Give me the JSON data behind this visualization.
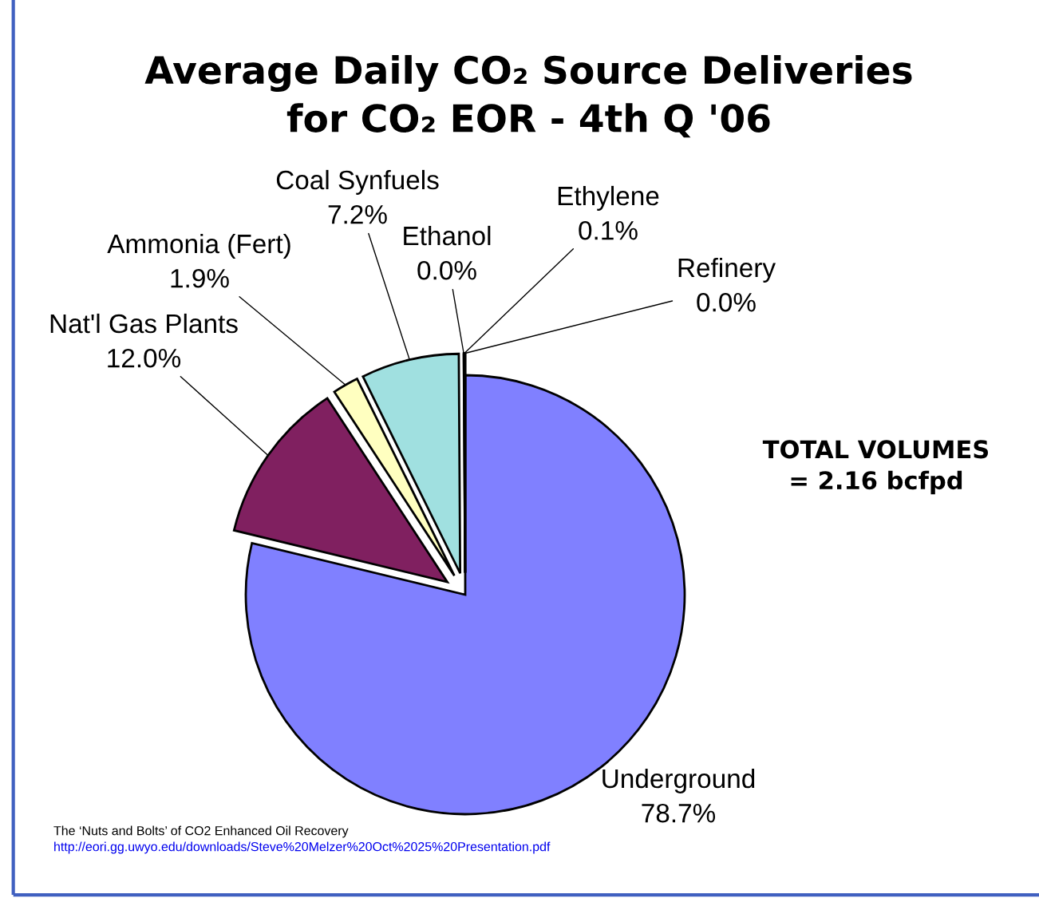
{
  "chart_data": {
    "type": "pie",
    "title": "Average Daily CO₂ Source Deliveries\nfor CO₂ EOR - 4th Q '06",
    "categories": [
      "Underground",
      "Nat'l Gas Plants",
      "Ammonia (Fert)",
      "Coal Synfuels",
      "Ethanol",
      "Ethylene",
      "Refinery"
    ],
    "values": [
      78.7,
      12.0,
      1.9,
      7.2,
      0.0,
      0.1,
      0.0
    ],
    "colors": [
      "#8080ff",
      "#802060",
      "#ffffc0",
      "#a0e0e0",
      "#ffffff",
      "#ffffff",
      "#ffffff"
    ],
    "value_labels": [
      "78.7%",
      "12.0%",
      "1.9%",
      "7.2%",
      "0.0%",
      "0.1%",
      "0.0%"
    ],
    "legend": false,
    "annotations": [
      "TOTAL VOLUMES\n= 2.16 bcfpd",
      "The ‘Nuts and Bolts’ of CO2 Enhanced Oil Recovery",
      "http://eori.gg.uwyo.edu/downloads/Steve%20Melzer%20Oct%2025%20Presentation.pdf"
    ]
  }
}
